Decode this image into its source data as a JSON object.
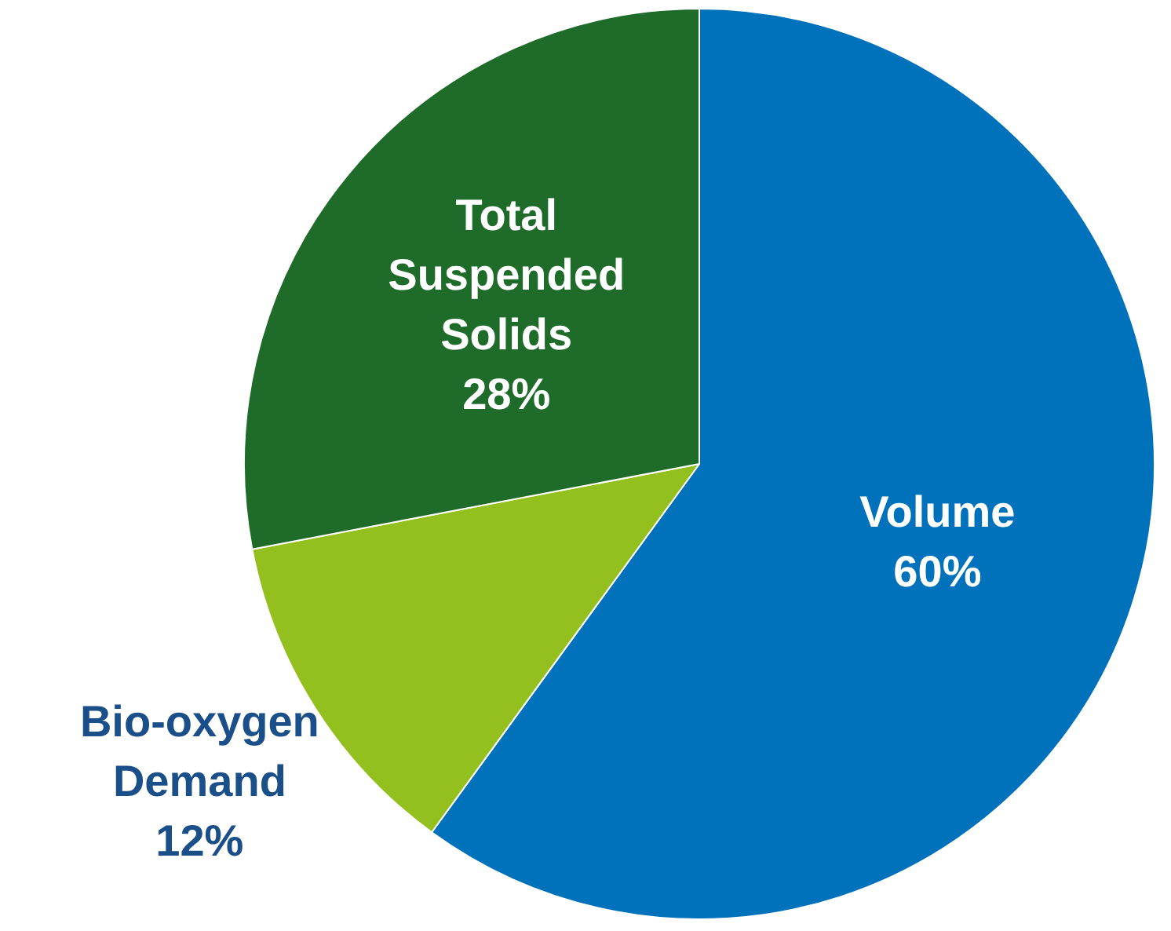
{
  "chart_data": {
    "type": "pie",
    "categories": [
      "Volume",
      "Bio-oxygen Demand",
      "Total Suspended Solids"
    ],
    "values": [
      60,
      12,
      28
    ],
    "colors": [
      "#0071bb",
      "#93c01f",
      "#1e6b2a"
    ],
    "value_labels": [
      "60%",
      "12%",
      "28%"
    ]
  }
}
